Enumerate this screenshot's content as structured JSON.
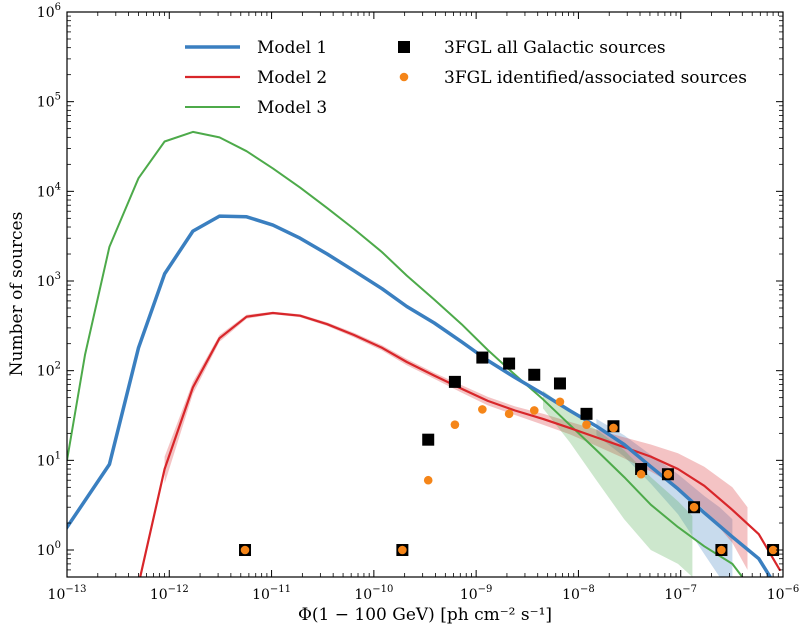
{
  "chart_data": {
    "type": "line",
    "xscale": "log",
    "yscale": "log",
    "xlim": [
      1e-13,
      1e-06
    ],
    "ylim": [
      0.5,
      1000000
    ],
    "xlabel": "Φ(1 − 100 GeV) [ph cm⁻² s⁻¹]",
    "ylabel": "Number of sources",
    "xticks": [
      {
        "value": 1e-13,
        "base": "10",
        "exp": "−13"
      },
      {
        "value": 1e-12,
        "base": "10",
        "exp": "−12"
      },
      {
        "value": 1e-11,
        "base": "10",
        "exp": "−11"
      },
      {
        "value": 1e-10,
        "base": "10",
        "exp": "−10"
      },
      {
        "value": 1e-09,
        "base": "10",
        "exp": "−9"
      },
      {
        "value": 1e-08,
        "base": "10",
        "exp": "−8"
      },
      {
        "value": 1e-07,
        "base": "10",
        "exp": "−7"
      },
      {
        "value": 1e-06,
        "base": "10",
        "exp": "−6"
      }
    ],
    "yticks": [
      {
        "value": 1,
        "base": "10",
        "exp": "0"
      },
      {
        "value": 10,
        "base": "10",
        "exp": "1"
      },
      {
        "value": 100,
        "base": "10",
        "exp": "2"
      },
      {
        "value": 1000,
        "base": "10",
        "exp": "3"
      },
      {
        "value": 10000,
        "base": "10",
        "exp": "4"
      },
      {
        "value": 100000,
        "base": "10",
        "exp": "5"
      },
      {
        "value": 1000000,
        "base": "10",
        "exp": "6"
      }
    ],
    "legend_position": "top",
    "series": [
      {
        "name": "Model 1",
        "kind": "line",
        "color": "#3a7fc0",
        "width": 3.5,
        "points": [
          [
            4.7e-14,
            0.5
          ],
          [
            2.6e-13,
            9
          ],
          [
            5e-13,
            180
          ],
          [
            9e-13,
            1200
          ],
          [
            1.7e-12,
            3600
          ],
          [
            3.1e-12,
            5300
          ],
          [
            5.7e-12,
            5200
          ],
          [
            1.03e-11,
            4200
          ],
          [
            1.9e-11,
            3000
          ],
          [
            3.5e-11,
            2000
          ],
          [
            6.4e-11,
            1300
          ],
          [
            1.2e-10,
            820
          ],
          [
            2.1e-10,
            520
          ],
          [
            3.9e-10,
            340
          ],
          [
            7.2e-10,
            210
          ],
          [
            1.3e-09,
            130
          ],
          [
            2.4e-09,
            84
          ],
          [
            4.5e-09,
            55
          ],
          [
            8.2e-09,
            36
          ],
          [
            1.5e-08,
            24
          ],
          [
            2.8e-08,
            15
          ],
          [
            5.1e-08,
            8.5
          ],
          [
            9.4e-08,
            4.8
          ],
          [
            1.7e-07,
            2.6
          ],
          [
            3.2e-07,
            1.4
          ],
          [
            5.8e-07,
            0.8
          ],
          [
            7.5e-07,
            0.5
          ]
        ],
        "band": [
          [
            1.5e-08,
            19,
            29
          ],
          [
            2.8e-08,
            11,
            19
          ],
          [
            5.1e-08,
            5.5,
            11.5
          ],
          [
            9.4e-08,
            2.5,
            7
          ],
          [
            1.7e-07,
            0.9,
            4
          ],
          [
            2.4e-07,
            0.5,
            3
          ],
          [
            3.2e-07,
            0.5,
            2.2
          ]
        ]
      },
      {
        "name": "Model 2",
        "kind": "line",
        "color": "#d8262a",
        "width": 2.2,
        "points": [
          [
            5.2e-13,
            0.5
          ],
          [
            9e-13,
            8
          ],
          [
            1.7e-12,
            65
          ],
          [
            3.1e-12,
            230
          ],
          [
            5.7e-12,
            400
          ],
          [
            1.03e-11,
            440
          ],
          [
            1.9e-11,
            410
          ],
          [
            3.5e-11,
            330
          ],
          [
            6.4e-11,
            250
          ],
          [
            1.2e-10,
            180
          ],
          [
            2.1e-10,
            125
          ],
          [
            3.9e-10,
            88
          ],
          [
            7.2e-10,
            63
          ],
          [
            1.3e-09,
            46
          ],
          [
            2.4e-09,
            36
          ],
          [
            4.5e-09,
            29
          ],
          [
            8.2e-09,
            23
          ],
          [
            1.5e-08,
            18
          ],
          [
            2.8e-08,
            14
          ],
          [
            5.1e-08,
            11
          ],
          [
            9.4e-08,
            8
          ],
          [
            1.7e-07,
            5.2
          ],
          [
            3.2e-07,
            2.8
          ],
          [
            5.8e-07,
            1.5
          ],
          [
            9.3e-07,
            0.6
          ]
        ],
        "band": [
          [
            9e-13,
            5.5,
            11
          ],
          [
            1.7e-12,
            55,
            75
          ],
          [
            3.1e-12,
            210,
            250
          ],
          [
            5.7e-12,
            380,
            420
          ],
          [
            1.03e-11,
            425,
            455
          ],
          [
            1.9e-11,
            395,
            425
          ],
          [
            3.5e-11,
            315,
            345
          ],
          [
            6.4e-11,
            235,
            265
          ],
          [
            1.2e-10,
            168,
            192
          ],
          [
            2.1e-10,
            115,
            135
          ],
          [
            3.9e-10,
            81,
            95
          ],
          [
            7.2e-10,
            57,
            69
          ],
          [
            1.3e-09,
            41,
            51
          ],
          [
            2.4e-09,
            32,
            40
          ],
          [
            4.5e-09,
            25,
            33
          ],
          [
            8.2e-09,
            19.5,
            27
          ],
          [
            1.5e-08,
            14.5,
            22
          ],
          [
            2.8e-08,
            10.5,
            18
          ],
          [
            5.1e-08,
            7.5,
            15
          ],
          [
            9.4e-08,
            5,
            12
          ],
          [
            1.7e-07,
            2.8,
            8.5
          ],
          [
            3.2e-07,
            1.2,
            5
          ],
          [
            4.5e-07,
            0.6,
            3
          ]
        ]
      },
      {
        "name": "Model 3",
        "kind": "line",
        "color": "#4daa4a",
        "width": 2.0,
        "points": [
          [
            1e-13,
            10
          ],
          [
            1.5e-13,
            150
          ],
          [
            2.6e-13,
            2400
          ],
          [
            5e-13,
            14000
          ],
          [
            9e-13,
            36000
          ],
          [
            1.7e-12,
            46000
          ],
          [
            3.1e-12,
            40000
          ],
          [
            5.7e-12,
            28000
          ],
          [
            1.03e-11,
            18000
          ],
          [
            1.9e-11,
            11000
          ],
          [
            3.5e-11,
            6500
          ],
          [
            6.4e-11,
            3800
          ],
          [
            1.2e-10,
            2100
          ],
          [
            2.1e-10,
            1150
          ],
          [
            3.9e-10,
            620
          ],
          [
            7.2e-10,
            330
          ],
          [
            1.3e-09,
            170
          ],
          [
            2.4e-09,
            90
          ],
          [
            4.5e-09,
            48
          ],
          [
            8.2e-09,
            25
          ],
          [
            1.5e-08,
            13
          ],
          [
            2.8e-08,
            6.5
          ],
          [
            5.1e-08,
            3.2
          ],
          [
            9.4e-08,
            1.8
          ],
          [
            1.7e-07,
            1.1
          ],
          [
            3.2e-07,
            0.7
          ],
          [
            4e-07,
            0.5
          ]
        ],
        "band": [
          [
            4.5e-09,
            38,
            60
          ],
          [
            8.2e-09,
            16,
            36
          ],
          [
            1.5e-08,
            6,
            22
          ],
          [
            2.8e-08,
            2.2,
            13
          ],
          [
            5.1e-08,
            1,
            6.5
          ],
          [
            9.4e-08,
            0.7,
            3.5
          ],
          [
            1.3e-07,
            0.5,
            2.4
          ]
        ]
      },
      {
        "name": "3FGL all Galactic sources",
        "kind": "scatter",
        "marker": "square",
        "color": "#000000",
        "points": [
          [
            5.5e-12,
            1
          ],
          [
            1.9e-10,
            1
          ],
          [
            3.4e-10,
            17
          ],
          [
            6.2e-10,
            75
          ],
          [
            1.15e-09,
            140
          ],
          [
            2.1e-09,
            120
          ],
          [
            3.7e-09,
            90
          ],
          [
            6.6e-09,
            72
          ],
          [
            1.2e-08,
            33
          ],
          [
            2.2e-08,
            24
          ],
          [
            4.1e-08,
            8
          ],
          [
            7.5e-08,
            7
          ],
          [
            1.35e-07,
            3
          ],
          [
            2.5e-07,
            1
          ],
          [
            8e-07,
            1
          ]
        ]
      },
      {
        "name": "3FGL identified/associated sources",
        "kind": "scatter",
        "marker": "circle",
        "color": "#f58518",
        "points": [
          [
            5.5e-12,
            1
          ],
          [
            1.9e-10,
            1
          ],
          [
            3.4e-10,
            6
          ],
          [
            6.2e-10,
            25
          ],
          [
            1.15e-09,
            37
          ],
          [
            2.1e-09,
            33
          ],
          [
            3.7e-09,
            36
          ],
          [
            6.6e-09,
            45
          ],
          [
            1.2e-08,
            25
          ],
          [
            2.2e-08,
            23
          ],
          [
            4.1e-08,
            7
          ],
          [
            7.5e-08,
            7
          ],
          [
            1.35e-07,
            3
          ],
          [
            2.5e-07,
            1
          ],
          [
            8e-07,
            1
          ]
        ]
      }
    ]
  }
}
